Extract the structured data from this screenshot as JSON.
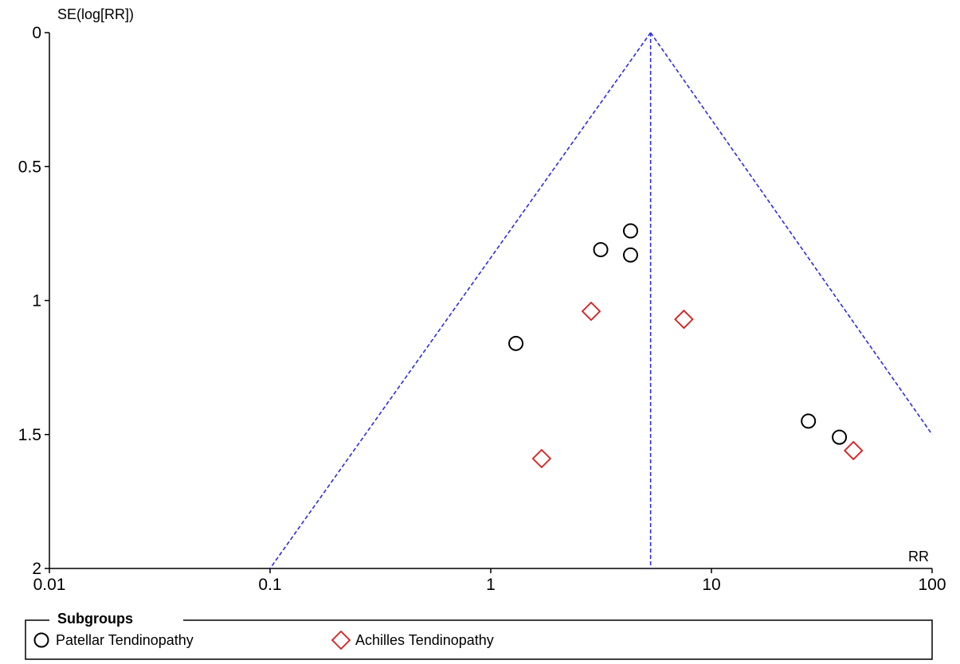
{
  "chart_data": {
    "type": "scatter",
    "title": "",
    "ylabel": "SE(log[RR])",
    "xlabel": "RR",
    "x_scale": "log",
    "xlim": [
      0.01,
      100
    ],
    "ylim": [
      0,
      2
    ],
    "y_inverted": true,
    "x_ticks": [
      "0.01",
      "0.1",
      "1",
      "10",
      "100"
    ],
    "y_ticks": [
      "0",
      "0.5",
      "1",
      "1.5",
      "2"
    ],
    "pooled_estimate": 5.3,
    "funnel_apex": {
      "x": 5.3,
      "y": 0
    },
    "funnel_left_end": {
      "x": 0.1,
      "y": 2.0
    },
    "funnel_right_end": {
      "x": 100,
      "y": 1.5
    },
    "funnel_color": "#2c2cdc",
    "grid": false,
    "legend_position": "bottom",
    "legend_title": "Subgroups",
    "series": [
      {
        "name": "Patellar Tendinopathy",
        "marker": "circle",
        "color": "#000000",
        "points": [
          {
            "x": 4.3,
            "y": 0.74
          },
          {
            "x": 3.15,
            "y": 0.81
          },
          {
            "x": 4.3,
            "y": 0.83
          },
          {
            "x": 1.3,
            "y": 1.16
          },
          {
            "x": 27.5,
            "y": 1.45
          },
          {
            "x": 38,
            "y": 1.51
          }
        ]
      },
      {
        "name": "Achilles Tendinopathy",
        "marker": "diamond",
        "color": "#d42020",
        "points": [
          {
            "x": 2.85,
            "y": 1.04
          },
          {
            "x": 7.5,
            "y": 1.07
          },
          {
            "x": 1.7,
            "y": 1.59
          },
          {
            "x": 44,
            "y": 1.56
          }
        ]
      }
    ]
  }
}
